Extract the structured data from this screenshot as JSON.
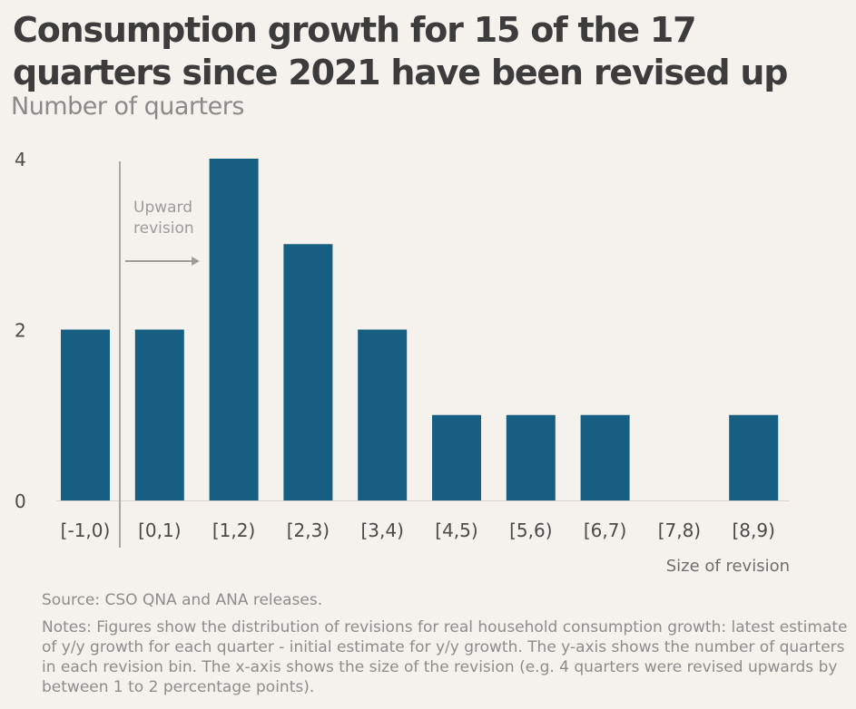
{
  "title": "Consumption growth for 15 of the 17 quarters since 2021 have been revised up",
  "subtitle": "Number of quarters",
  "source": "Source: CSO QNA and ANA releases.",
  "notes": "Notes: Figures show the distribution of revisions for real household consumption growth: latest estimate of y/y growth for each quarter - initial estimate for y/y growth. The y-axis shows the number of quarters in each revision bin. The x-axis shows the size of the revision  (e.g. 4 quarters were revised upwards by between 1 to 2 percentage points).",
  "colors": {
    "bar": "#165e82",
    "background": "#f5f1ec",
    "annotation": "#9c9c9c"
  },
  "chart_data": {
    "type": "bar",
    "categories": [
      "[-1,0)",
      "[0,1)",
      "[1,2)",
      "[2,3)",
      "[3,4)",
      "[4,5)",
      "[5,6)",
      "[6,7)",
      "[7,8)",
      "[8,9)"
    ],
    "values": [
      2,
      2,
      4,
      3,
      2,
      1,
      1,
      1,
      0,
      1
    ],
    "xlabel": "Size of revision",
    "ylabel": "",
    "ylim": [
      0,
      4
    ],
    "yticks": [
      0,
      2,
      4
    ],
    "grid": false,
    "annotation": {
      "lines": [
        "Upward",
        "revision"
      ]
    }
  }
}
